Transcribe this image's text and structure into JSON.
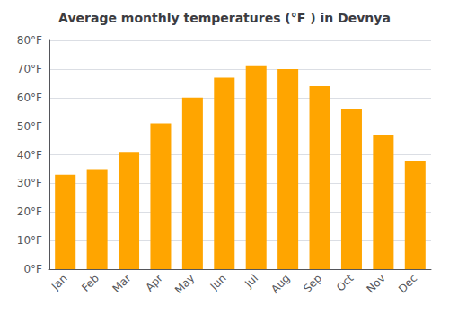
{
  "chart_data": {
    "type": "bar",
    "title": "Average monthly temperatures (°F ) in Devnya",
    "categories": [
      "Jan",
      "Feb",
      "Mar",
      "Apr",
      "May",
      "Jun",
      "Jul",
      "Aug",
      "Sep",
      "Oct",
      "Nov",
      "Dec"
    ],
    "values": [
      33,
      35,
      41,
      51,
      60,
      67,
      71,
      70,
      64,
      56,
      47,
      38
    ],
    "color": "#FFA500",
    "ylim": [
      0,
      80
    ],
    "yticks": [
      {
        "value": 0,
        "label": "0°F"
      },
      {
        "value": 10,
        "label": "10°F"
      },
      {
        "value": 20,
        "label": "20°F"
      },
      {
        "value": 30,
        "label": "30°F"
      },
      {
        "value": 40,
        "label": "40°F"
      },
      {
        "value": 50,
        "label": "50°F"
      },
      {
        "value": 60,
        "label": "60°F"
      },
      {
        "value": 70,
        "label": "70°F"
      },
      {
        "value": 80,
        "label": "80°F"
      }
    ],
    "grid": true
  }
}
